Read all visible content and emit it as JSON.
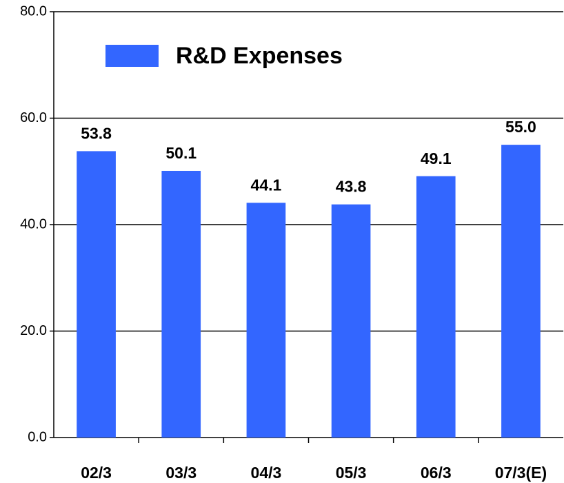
{
  "chart_data": {
    "type": "bar",
    "categories": [
      "02/3",
      "03/3",
      "04/3",
      "05/3",
      "06/3",
      "07/3(E)"
    ],
    "series": [
      {
        "name": "R&D Expenses",
        "color": "#3366ff",
        "values": [
          53.8,
          50.1,
          44.1,
          43.8,
          49.1,
          55.0
        ],
        "value_labels": [
          "53.8",
          "50.1",
          "44.1",
          "43.8",
          "49.1",
          "55.0"
        ]
      }
    ],
    "ylim": [
      0,
      80
    ],
    "yticks": [
      {
        "value": 0,
        "label": "0.0"
      },
      {
        "value": 20,
        "label": "20.0"
      },
      {
        "value": 40,
        "label": "40.0"
      },
      {
        "value": 60,
        "label": "60.0"
      },
      {
        "value": 80,
        "label": "80.0"
      }
    ],
    "grid": true,
    "legend": "upper left"
  }
}
